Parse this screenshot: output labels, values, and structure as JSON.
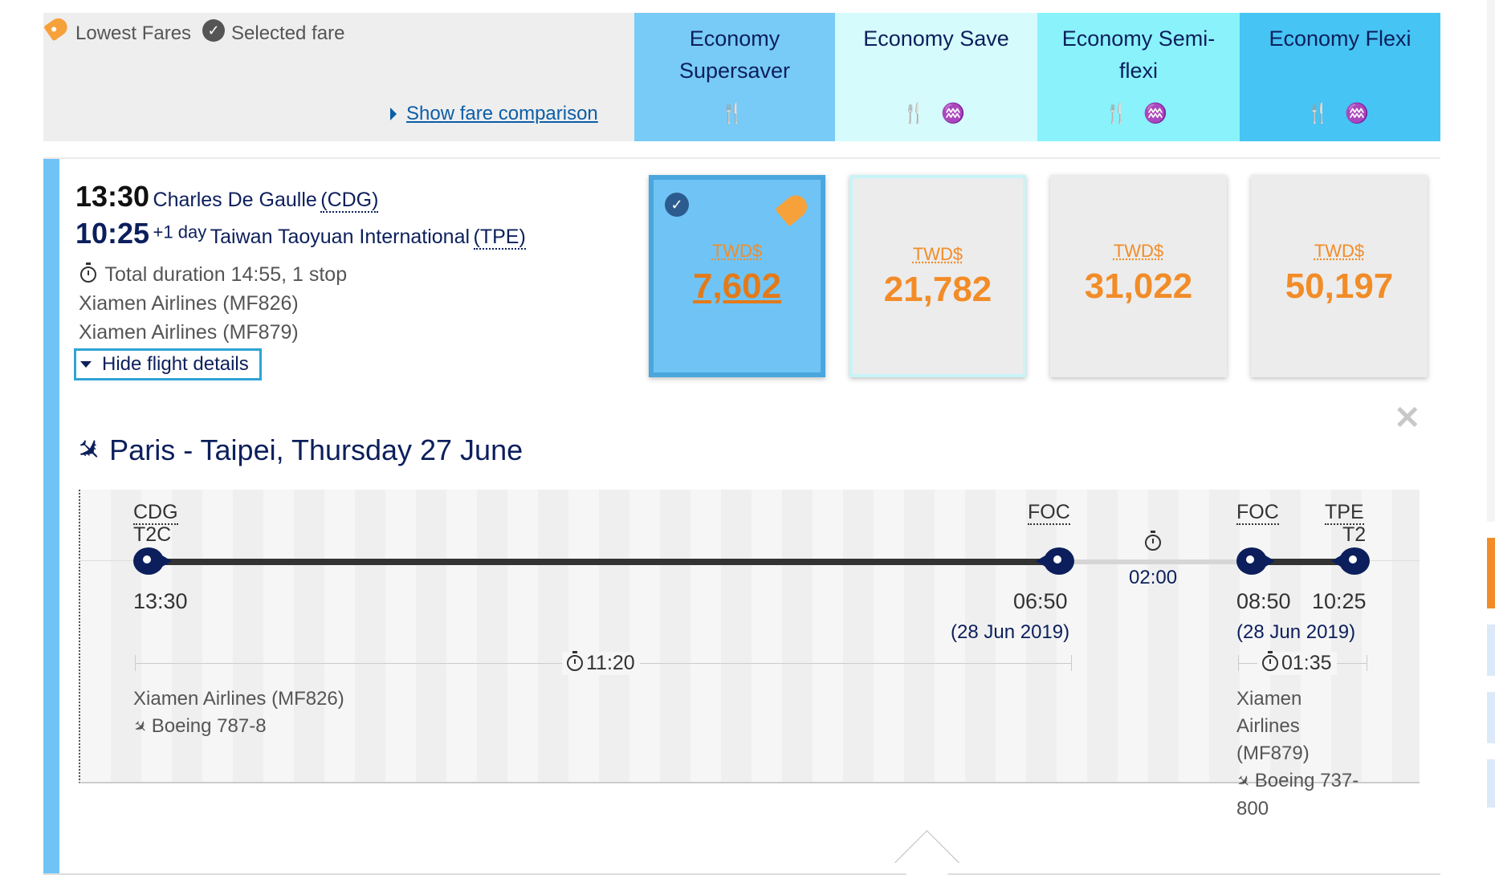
{
  "legend": {
    "lowest_fares": "Lowest Fares",
    "selected_fare": "Selected fare",
    "show_fare_comparison": "Show fare comparison"
  },
  "fare_columns": [
    {
      "name": "Economy Supersaver",
      "bg": "#78cbf6"
    },
    {
      "name": "Economy Save",
      "bg": "#d6fbfd"
    },
    {
      "name": "Economy Semi-flexi",
      "bg": "#8af2fb"
    },
    {
      "name": "Economy Flexi",
      "bg": "#46c4f4"
    }
  ],
  "flight": {
    "depart_time": "13:30",
    "depart_airport": "Charles De Gaulle",
    "depart_code": "(CDG)",
    "arrive_time": "10:25",
    "arrive_offset": "+1 day",
    "arrive_airport": "Taiwan Taoyuan International",
    "arrive_code": "(TPE)",
    "duration": "Total duration 14:55, 1 stop",
    "airline_1": "Xiamen Airlines (MF826)",
    "airline_2": "Xiamen Airlines (MF879)",
    "hide_details": "Hide flight details"
  },
  "prices": [
    {
      "currency": "TWD$",
      "amount": "7,602",
      "selected": true
    },
    {
      "currency": "TWD$",
      "amount": "21,782"
    },
    {
      "currency": "TWD$",
      "amount": "31,022"
    },
    {
      "currency": "TWD$",
      "amount": "50,197"
    }
  ],
  "details": {
    "route_title": "Paris - Taipei, Thursday 27 June",
    "seg1": {
      "from_code": "CDG",
      "from_terminal": "T2C",
      "depart": "13:30",
      "to_code": "FOC",
      "arrive": "06:50",
      "arrive_date": "(28 Jun 2019)",
      "duration": "11:20",
      "airline": "Xiamen Airlines (MF826)",
      "aircraft": "Boeing 787-8"
    },
    "layover": "02:00",
    "seg2": {
      "from_code": "FOC",
      "depart": "08:50",
      "depart_date": "(28 Jun 2019)",
      "to_code": "TPE",
      "to_terminal": "T2",
      "arrive": "10:25",
      "duration": "01:35",
      "airline_l1": "Xiamen",
      "airline_l2": "Airlines",
      "airline_l3": "(MF879)",
      "aircraft_l1": "Boeing 737-",
      "aircraft_l2": "800"
    }
  }
}
